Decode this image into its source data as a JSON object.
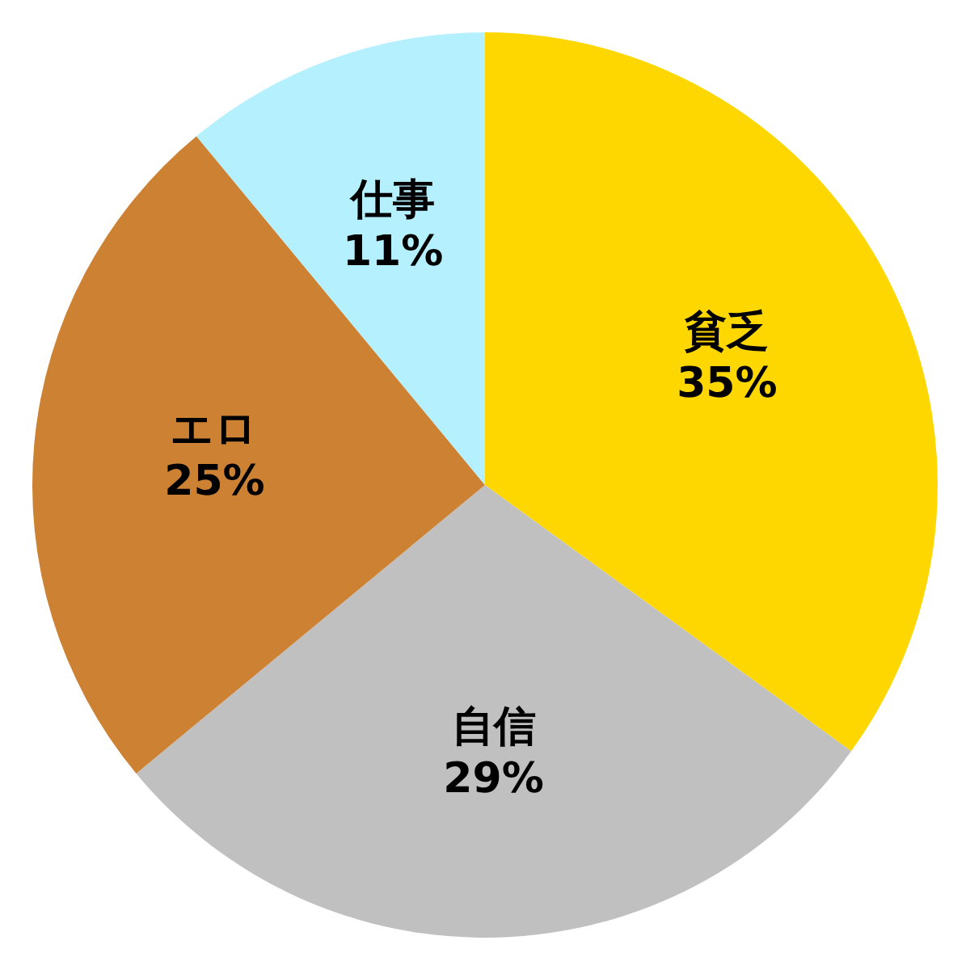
{
  "chart_data": {
    "type": "pie",
    "categories": [
      "貧乏",
      "自信",
      "エロ",
      "仕事"
    ],
    "values": [
      35,
      29,
      25,
      11
    ],
    "colors": [
      "#ffd700",
      "#c0c0c0",
      "#cd8133",
      "#b5f0ff"
    ],
    "value_labels": [
      "35%",
      "29%",
      "25%",
      "11%"
    ]
  }
}
